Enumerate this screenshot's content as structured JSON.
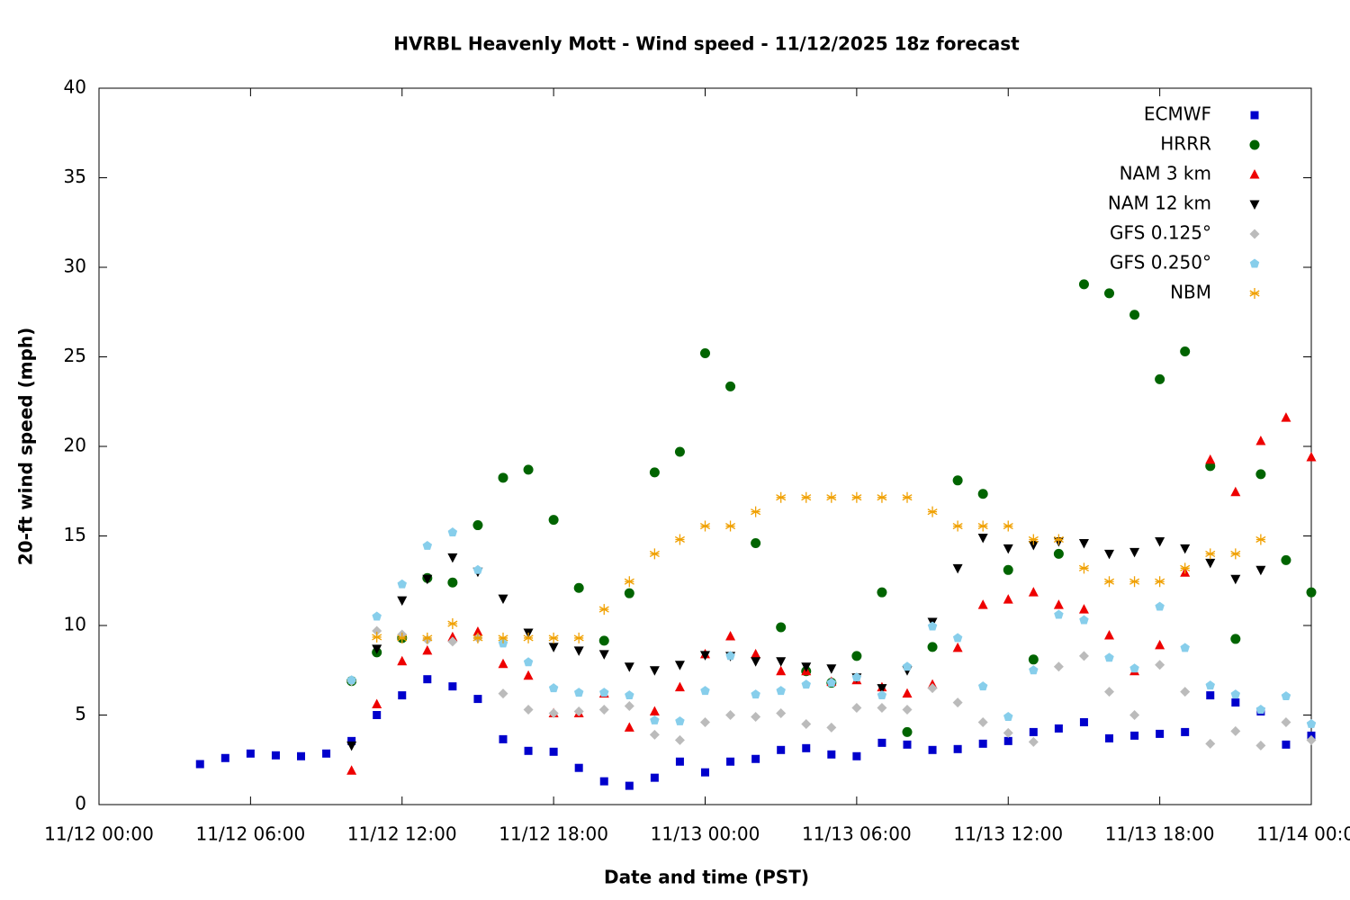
{
  "chart_data": {
    "type": "scatter",
    "title": "HVRBL Heavenly Mott - Wind speed - 11/12/2025 18z forecast",
    "x_label": "Date and time (PST)",
    "y_label": "20-ft wind speed (mph)",
    "x": [
      "11/12 04:00",
      "11/12 05:00",
      "11/12 06:00",
      "11/12 07:00",
      "11/12 08:00",
      "11/12 09:00",
      "11/12 10:00",
      "11/12 11:00",
      "11/12 12:00",
      "11/12 13:00",
      "11/12 14:00",
      "11/12 15:00",
      "11/12 16:00",
      "11/12 17:00",
      "11/12 18:00",
      "11/12 19:00",
      "11/12 20:00",
      "11/12 21:00",
      "11/12 22:00",
      "11/12 23:00",
      "11/13 00:00",
      "11/13 01:00",
      "11/13 02:00",
      "11/13 03:00",
      "11/13 04:00",
      "11/13 05:00",
      "11/13 06:00",
      "11/13 07:00",
      "11/13 08:00",
      "11/13 09:00",
      "11/13 10:00",
      "11/13 11:00",
      "11/13 12:00",
      "11/13 13:00",
      "11/13 14:00",
      "11/13 15:00",
      "11/13 16:00",
      "11/13 17:00",
      "11/13 18:00",
      "11/13 19:00",
      "11/13 20:00",
      "11/13 21:00",
      "11/13 22:00",
      "11/13 23:00",
      "11/14 00:00"
    ],
    "xlim": [
      "11/12 00:00",
      "11/14 00:00"
    ],
    "xticks": [
      "11/12 00:00",
      "11/12 06:00",
      "11/12 12:00",
      "11/12 18:00",
      "11/13 00:00",
      "11/13 06:00",
      "11/13 12:00",
      "11/13 18:00",
      "11/14 00:00"
    ],
    "ylim": [
      0,
      40
    ],
    "yticks": [
      0,
      5,
      10,
      15,
      20,
      25,
      30,
      35,
      40
    ],
    "legend": "top-right",
    "series": [
      {
        "name": "ECMWF",
        "color": "#0000cc",
        "marker": "square",
        "values": [
          2.26,
          2.6,
          2.85,
          2.75,
          2.7,
          2.85,
          3.55,
          5.0,
          6.1,
          7.0,
          6.6,
          5.9,
          3.65,
          3.0,
          2.95,
          2.05,
          1.3,
          1.05,
          1.5,
          2.4,
          1.8,
          2.4,
          2.55,
          3.05,
          3.15,
          2.8,
          2.7,
          3.45,
          3.35,
          3.05,
          3.1,
          3.4,
          3.55,
          4.05,
          4.25,
          4.6,
          3.7,
          3.85,
          3.95,
          4.05,
          6.1,
          5.7,
          5.2,
          3.35,
          3.85
        ]
      },
      {
        "name": "HRRR",
        "color": "#006400",
        "marker": "circle",
        "values": [
          null,
          null,
          null,
          null,
          null,
          null,
          6.9,
          8.5,
          9.3,
          12.65,
          12.4,
          15.6,
          18.25,
          18.7,
          15.9,
          12.1,
          9.15,
          11.8,
          18.55,
          19.7,
          25.2,
          23.35,
          14.6,
          9.9,
          7.45,
          6.8,
          8.3,
          11.85,
          4.05,
          8.8,
          18.1,
          17.35,
          13.1,
          8.1,
          14.0,
          29.05,
          28.55,
          27.35,
          23.75,
          25.3,
          18.9,
          9.25,
          18.45,
          13.65,
          11.85
        ]
      },
      {
        "name": "NAM 3 km",
        "color": "#ee0000",
        "marker": "triangle-up",
        "values": [
          null,
          null,
          null,
          null,
          null,
          null,
          1.9,
          5.6,
          8.0,
          8.6,
          9.35,
          9.65,
          7.85,
          7.2,
          5.1,
          5.1,
          6.2,
          4.3,
          5.2,
          6.55,
          8.4,
          9.4,
          8.4,
          7.45,
          7.45,
          6.85,
          6.95,
          6.55,
          6.2,
          6.7,
          8.75,
          11.15,
          11.45,
          11.85,
          11.15,
          10.9,
          9.45,
          7.45,
          8.9,
          12.95,
          19.25,
          17.45,
          20.3,
          21.6,
          19.4
        ]
      },
      {
        "name": "NAM 12 km",
        "color": "#000000",
        "marker": "triangle-down",
        "values": [
          null,
          null,
          null,
          null,
          null,
          null,
          3.3,
          8.7,
          11.4,
          12.6,
          13.8,
          13.0,
          11.5,
          9.6,
          8.8,
          8.6,
          8.4,
          7.7,
          7.5,
          7.8,
          8.35,
          8.3,
          8.0,
          8.0,
          7.7,
          7.6,
          7.1,
          6.5,
          7.5,
          10.2,
          13.2,
          14.9,
          14.3,
          14.5,
          14.7,
          14.6,
          14.0,
          14.1,
          14.7,
          14.3,
          13.5,
          12.6,
          13.1,
          null,
          null
        ]
      },
      {
        "name": "GFS 0.125°",
        "color": "#bbbbbb",
        "marker": "diamond",
        "values": [
          null,
          null,
          null,
          null,
          null,
          null,
          6.9,
          9.7,
          9.5,
          9.2,
          9.1,
          9.3,
          6.2,
          5.3,
          5.1,
          5.2,
          5.3,
          5.5,
          3.9,
          3.6,
          4.6,
          5.0,
          4.9,
          5.1,
          4.5,
          4.3,
          5.4,
          5.4,
          5.3,
          6.5,
          5.7,
          4.6,
          4.0,
          3.5,
          7.7,
          8.3,
          6.3,
          5.0,
          7.8,
          6.3,
          3.4,
          4.1,
          3.3,
          4.6,
          3.6
        ]
      },
      {
        "name": "GFS 0.250°",
        "color": "#87ceeb",
        "marker": "pentagon",
        "values": [
          null,
          null,
          null,
          null,
          null,
          null,
          6.95,
          10.5,
          12.3,
          14.45,
          15.2,
          13.1,
          9.0,
          7.95,
          6.5,
          6.25,
          6.25,
          6.1,
          4.7,
          4.65,
          6.35,
          8.3,
          6.15,
          6.35,
          6.7,
          6.8,
          7.1,
          6.1,
          7.7,
          9.95,
          9.3,
          6.6,
          4.9,
          7.5,
          10.6,
          10.3,
          8.2,
          7.6,
          11.05,
          8.75,
          6.65,
          6.15,
          5.3,
          6.05,
          4.5
        ]
      },
      {
        "name": "NBM",
        "color": "#f0a000",
        "marker": "asterisk",
        "values": [
          null,
          null,
          null,
          null,
          null,
          null,
          null,
          9.35,
          9.3,
          9.3,
          10.1,
          9.3,
          9.3,
          9.3,
          9.3,
          9.3,
          10.9,
          12.45,
          14.0,
          14.8,
          15.55,
          15.55,
          16.35,
          17.15,
          17.15,
          17.15,
          17.15,
          17.15,
          17.15,
          16.35,
          15.55,
          15.55,
          15.55,
          14.8,
          14.8,
          13.2,
          12.45,
          12.45,
          12.45,
          13.2,
          14.0,
          14.0,
          14.8,
          null,
          null
        ]
      }
    ]
  }
}
